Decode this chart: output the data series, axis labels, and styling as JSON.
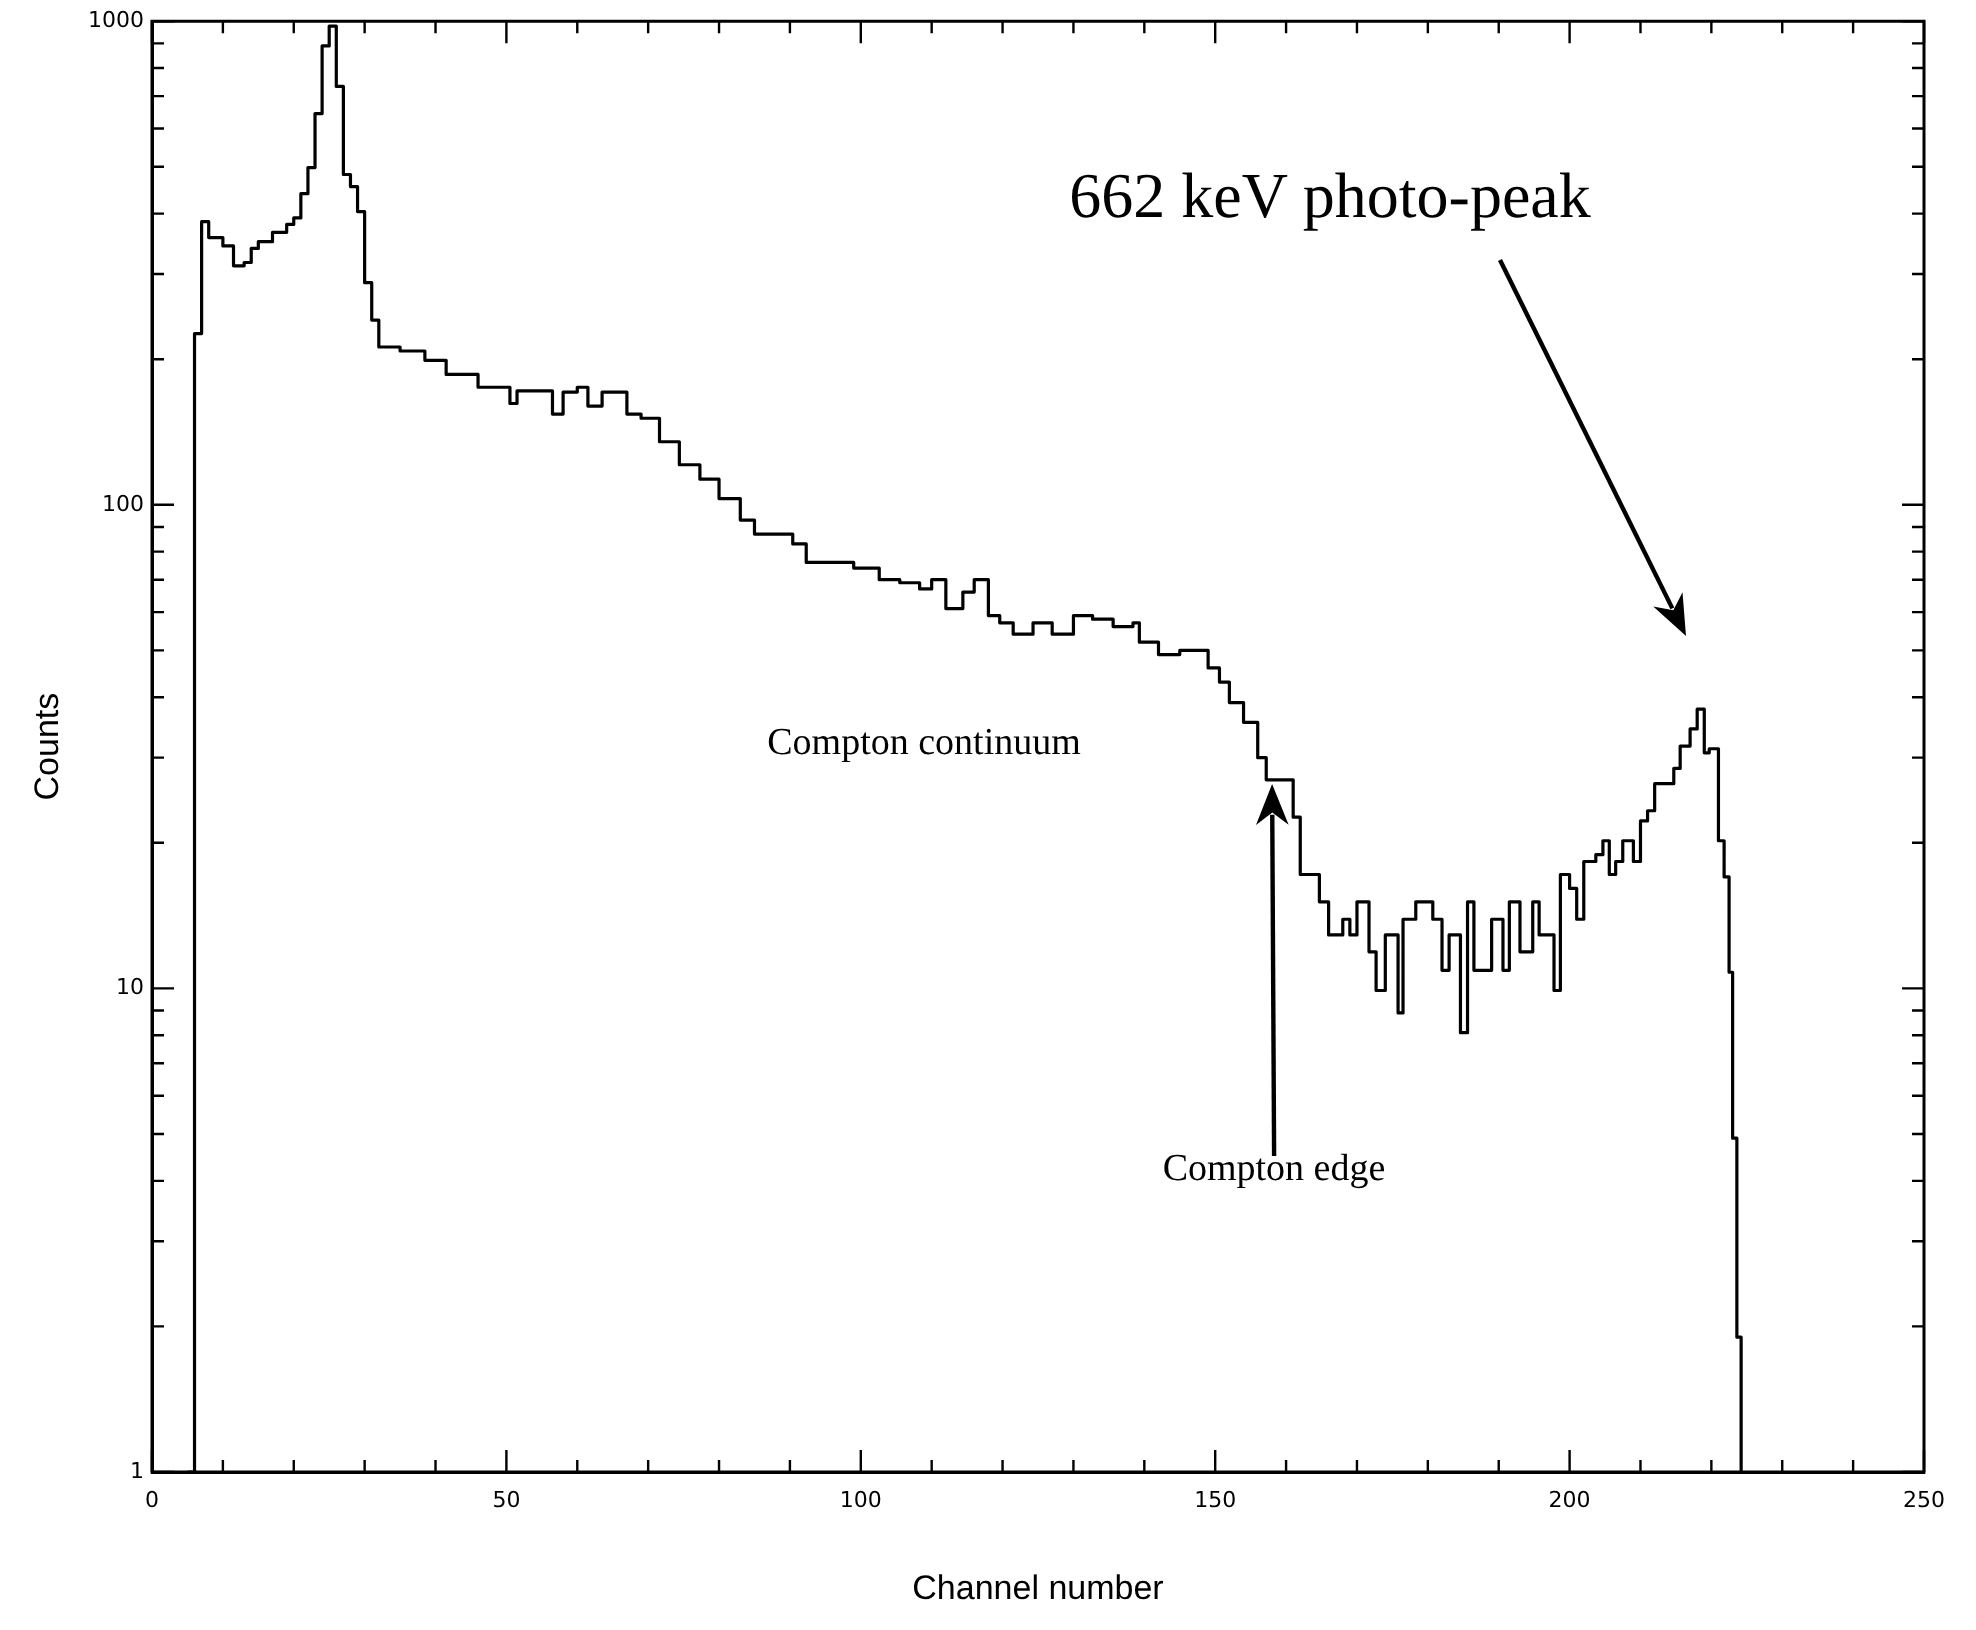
{
  "chart_data": {
    "type": "step",
    "xlabel": "Channel number",
    "ylabel": "Counts",
    "log": "y",
    "xlim": [
      0,
      250
    ],
    "xticks": [
      0,
      {
        "value": 10,
        "label": null
      },
      {
        "value": 20,
        "label": null
      },
      {
        "value": 30,
        "label": null
      },
      {
        "value": 40,
        "label": null
      },
      50,
      {
        "value": 60,
        "label": null
      },
      {
        "value": 70,
        "label": null
      },
      {
        "value": 80,
        "label": null
      },
      {
        "value": 90,
        "label": null
      },
      100,
      {
        "value": 110,
        "label": null
      },
      {
        "value": 120,
        "label": null
      },
      {
        "value": 130,
        "label": null
      },
      {
        "value": 140,
        "label": null
      },
      150,
      {
        "value": 160,
        "label": null
      },
      {
        "value": 170,
        "label": null
      },
      {
        "value": 180,
        "label": null
      },
      {
        "value": 190,
        "label": null
      },
      200,
      {
        "value": 210,
        "label": null
      },
      {
        "value": 220,
        "label": null
      },
      {
        "value": 230,
        "label": null
      },
      {
        "value": 240,
        "label": null
      },
      250
    ],
    "ylim": [
      1,
      1000
    ],
    "yticks": [
      1,
      {
        "value": 2,
        "label": null
      },
      {
        "value": 3,
        "label": null
      },
      {
        "value": 4,
        "label": null
      },
      {
        "value": 5,
        "label": null
      },
      {
        "value": 6,
        "label": null
      },
      {
        "value": 7,
        "label": null
      },
      {
        "value": 8,
        "label": null
      },
      {
        "value": 9,
        "label": null
      },
      10,
      {
        "value": 20,
        "label": null
      },
      {
        "value": 30,
        "label": null
      },
      {
        "value": 40,
        "label": null
      },
      {
        "value": 50,
        "label": null
      },
      {
        "value": 60,
        "label": null
      },
      {
        "value": 70,
        "label": null
      },
      {
        "value": 80,
        "label": null
      },
      {
        "value": 90,
        "label": null
      },
      100,
      {
        "value": 200,
        "label": null
      },
      {
        "value": 300,
        "label": null
      },
      {
        "value": 400,
        "label": null
      },
      {
        "value": 500,
        "label": null
      },
      {
        "value": 600,
        "label": null
      },
      {
        "value": 700,
        "label": null
      },
      {
        "value": 800,
        "label": null
      },
      {
        "value": 900,
        "label": null
      },
      1000
    ],
    "series": [
      {
        "color": "#000000",
        "x": [
          5,
          6,
          7,
          8,
          10,
          11.5,
          13,
          14,
          15,
          17,
          19,
          20,
          21,
          22,
          23,
          24,
          25,
          26,
          27,
          28,
          29,
          30,
          31,
          32,
          35,
          38.5,
          41.5,
          46,
          50.5,
          51.5,
          56.5,
          58,
          60,
          61.5,
          63.5,
          67,
          69,
          71.6,
          74.4,
          77.3,
          80,
          83,
          85,
          90.4,
          92.3,
          99,
          102.6,
          105.5,
          108.3,
          110,
          112,
          114.4,
          116,
          118,
          119.6,
          121.5,
          124.3,
          127,
          130,
          132.7,
          135.6,
          138.4,
          139.3,
          142,
          145,
          149,
          150.6,
          152,
          154,
          156,
          157.2,
          161,
          162,
          164.7,
          166,
          168,
          169,
          170,
          171.7,
          172.7,
          174,
          175.8,
          176.5,
          178.3,
          180.7,
          182,
          183,
          184.6,
          185.6,
          186.5,
          189,
          190.6,
          191.5,
          193,
          194.8,
          195.7,
          197.8,
          198.7,
          200,
          201,
          202,
          203.7,
          204.7,
          205.6,
          206.5,
          207.5,
          209,
          210,
          211,
          212,
          214.7,
          215.6,
          217,
          218,
          219,
          219.7,
          221,
          221.8,
          222.5,
          223,
          223.6,
          224.2
        ],
        "values": [
          1,
          226,
          385,
          357,
          343,
          312,
          317,
          339,
          350,
          366,
          380,
          392,
          440,
          498,
          644,
          889,
          977,
          733,
          482,
          455,
          404,
          288,
          241,
          212,
          208,
          199,
          186,
          175,
          162,
          172,
          154,
          171,
          175,
          160,
          171,
          154,
          151,
          135,
          121,
          113,
          103,
          93,
          87,
          83,
          76,
          74,
          70,
          69,
          67,
          70,
          61,
          66,
          70,
          59,
          57,
          54,
          57,
          54,
          59,
          58,
          56,
          57,
          52,
          49,
          50,
          46,
          43,
          39,
          35.5,
          30,
          27,
          22.6,
          17.2,
          15.1,
          12.9,
          13.9,
          12.9,
          15.1,
          11.9,
          9.9,
          12.9,
          8.9,
          13.9,
          15.1,
          13.9,
          10.9,
          12.9,
          8.1,
          15.1,
          10.9,
          13.9,
          10.9,
          15.1,
          11.9,
          15.1,
          12.9,
          9.9,
          17.2,
          16.1,
          13.9,
          18.3,
          18.9,
          20.2,
          17.2,
          18.3,
          20.2,
          18.3,
          22.2,
          23.3,
          26.5,
          28.5,
          31.7,
          34.4,
          37.8,
          30.7,
          31.3,
          20.2,
          17,
          10.8,
          4.9,
          1.9,
          1
        ]
      }
    ],
    "annotations": [
      "662 keV photo-peak",
      "Compton continuum",
      "Compton edge"
    ]
  }
}
